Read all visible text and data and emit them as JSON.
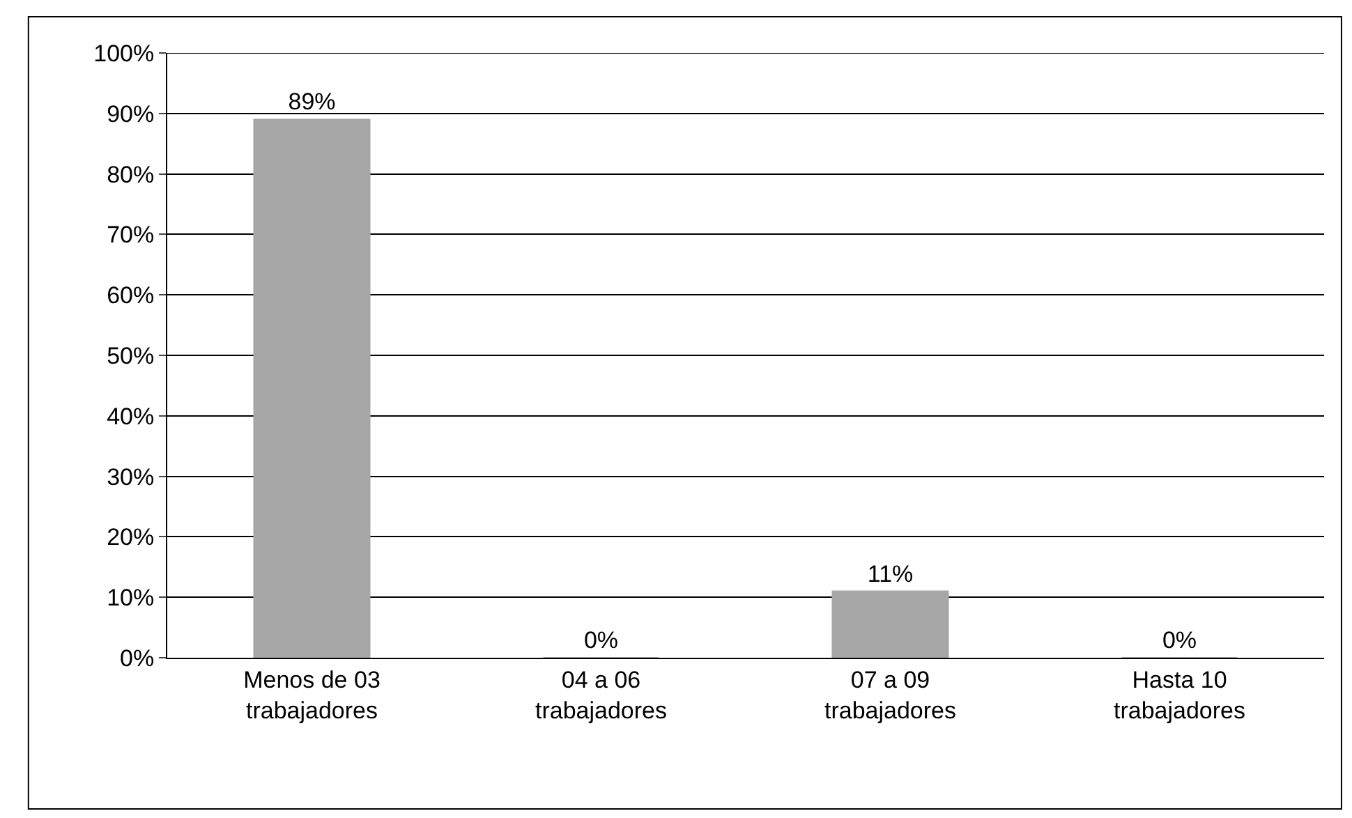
{
  "chart_data": {
    "type": "bar",
    "categories": [
      "Menos de 03\ntrabajadores",
      "04 a 06\ntrabajadores",
      "07 a 09\ntrabajadores",
      "Hasta 10\ntrabajadores"
    ],
    "values": [
      89,
      0,
      11,
      0
    ],
    "value_labels": [
      "89%",
      "0%",
      "11%",
      "0%"
    ],
    "color": "#a6a6a6",
    "ylim": [
      0,
      100
    ],
    "yticks": [
      {
        "value": 0,
        "label": "0%"
      },
      {
        "value": 10,
        "label": "10%"
      },
      {
        "value": 20,
        "label": "20%"
      },
      {
        "value": 30,
        "label": "30%"
      },
      {
        "value": 40,
        "label": "40%"
      },
      {
        "value": 50,
        "label": "50%"
      },
      {
        "value": 60,
        "label": "60%"
      },
      {
        "value": 70,
        "label": "70%"
      },
      {
        "value": 80,
        "label": "80%"
      },
      {
        "value": 90,
        "label": "90%"
      },
      {
        "value": 100,
        "label": "100%"
      }
    ],
    "grid": "y",
    "legend": false
  }
}
